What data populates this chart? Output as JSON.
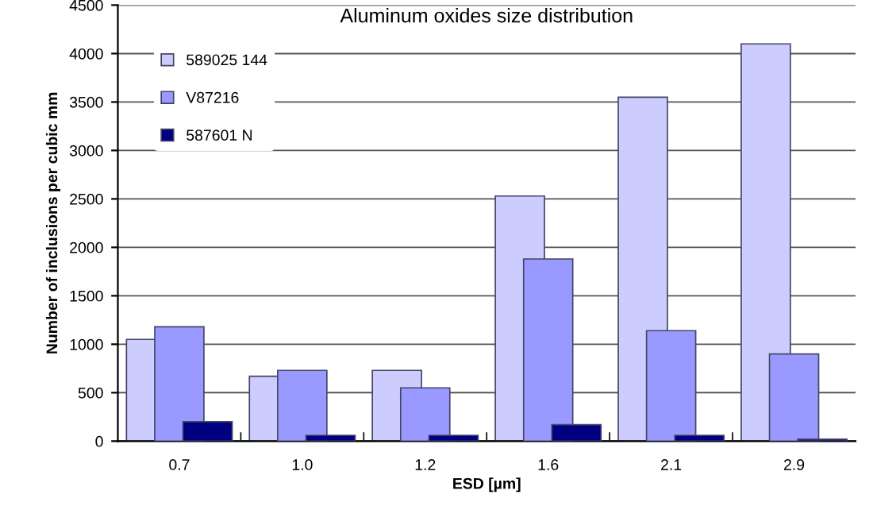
{
  "chart_data": {
    "type": "bar",
    "title": "Aluminum oxides size distribution",
    "xlabel": "ESD [µm]",
    "ylabel": "Number of inclusions per cubic mm",
    "categories": [
      "0.7",
      "1.0",
      "1.2",
      "1.6",
      "2.1",
      "2.9"
    ],
    "series": [
      {
        "name": "589025 144",
        "color": "#ccccff",
        "values": [
          1050,
          670,
          730,
          2530,
          3550,
          4100
        ]
      },
      {
        "name": "V87216",
        "color": "#9999ff",
        "values": [
          1180,
          730,
          550,
          1880,
          1140,
          900
        ]
      },
      {
        "name": "587601 N",
        "color": "#000080",
        "values": [
          200,
          60,
          60,
          170,
          60,
          20
        ]
      }
    ],
    "ylim": [
      0,
      4500
    ],
    "yticks": [
      0,
      500,
      1000,
      1500,
      2000,
      2500,
      3000,
      3500,
      4000,
      4500
    ],
    "grid": "y",
    "legend": "top left"
  }
}
